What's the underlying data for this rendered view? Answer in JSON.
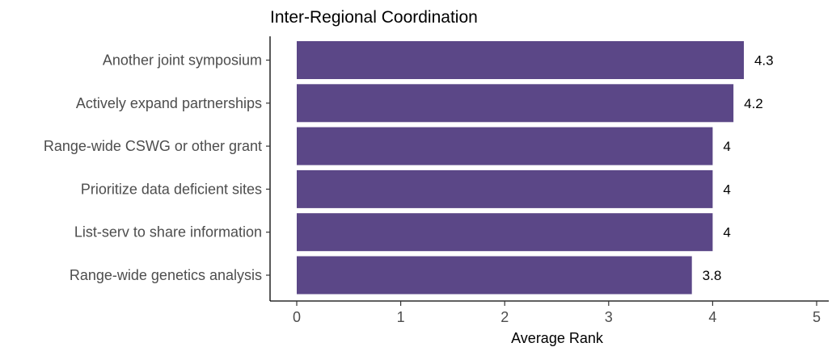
{
  "chart_data": {
    "type": "bar",
    "orientation": "horizontal",
    "title": "Inter-Regional Coordination",
    "xlabel": "Average Rank",
    "ylabel": "",
    "categories": [
      "Another joint symposium",
      "Actively expand partnerships",
      "Range-wide CSWG or other grant",
      "Prioritize data deficient sites",
      "List-serv to share information",
      "Range-wide genetics analysis"
    ],
    "values": [
      4.3,
      4.2,
      4,
      4,
      4,
      3.8
    ],
    "value_labels": [
      "4.3",
      "4.2",
      "4",
      "4",
      "4",
      "3.8"
    ],
    "xlim": [
      0,
      5
    ],
    "xticks": [
      0,
      1,
      2,
      3,
      4,
      5
    ],
    "grid": false,
    "legend": "none",
    "bar_color": "#5b4787"
  }
}
